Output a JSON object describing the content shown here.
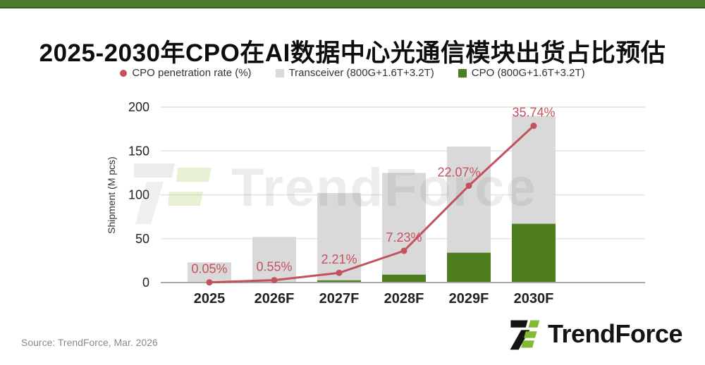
{
  "page": {
    "title": "2025-2030年CPO在AI数据中心光通信模块出货占比预估",
    "source_note": "Source: TrendForce, Mar. 2026",
    "brand_name": "TrendForce",
    "watermark": "TrendForce"
  },
  "colors": {
    "accent_green": "#4c7a2e",
    "bar_gray": "#d9d9d9",
    "bar_green": "#4e7d1f",
    "line_red": "#c4525e",
    "logo_black": "#141414",
    "logo_green": "#82bb33",
    "axis_text": "#222222",
    "gridline": "#e4e4e4"
  },
  "chart_data": {
    "type": "combo-bar-line",
    "categories": [
      "2025",
      "2026F",
      "2027F",
      "2028F",
      "2029F",
      "2030F"
    ],
    "series": [
      {
        "name": "CPO penetration rate (%)",
        "type": "line",
        "axis": "secondary",
        "unit": "%",
        "values": [
          0.05,
          0.55,
          2.21,
          7.23,
          22.07,
          35.74
        ],
        "labels": [
          "0.05%",
          "0.55%",
          "2.21%",
          "7.23%",
          "22.07%",
          "35.74%"
        ],
        "color": "#c4525e"
      },
      {
        "name": "Transceiver (800G+1.6T+3.2T)",
        "type": "bar",
        "unit": "M pcs",
        "values": [
          23,
          52,
          102,
          125,
          155,
          190
        ],
        "color": "#d9d9d9"
      },
      {
        "name": "CPO (800G+1.6T+3.2T)",
        "type": "bar",
        "unit": "M pcs",
        "values": [
          0.1,
          0.5,
          2.5,
          9,
          34,
          67
        ],
        "color": "#4e7d1f"
      }
    ],
    "xlabel": "",
    "ylabel": "Shipment (M pcs)",
    "yticks": [
      0,
      50,
      100,
      150,
      200
    ],
    "ylim": [
      0,
      200
    ],
    "secondary_ylim": [
      0,
      40
    ],
    "grid": true,
    "legend_position": "top"
  }
}
